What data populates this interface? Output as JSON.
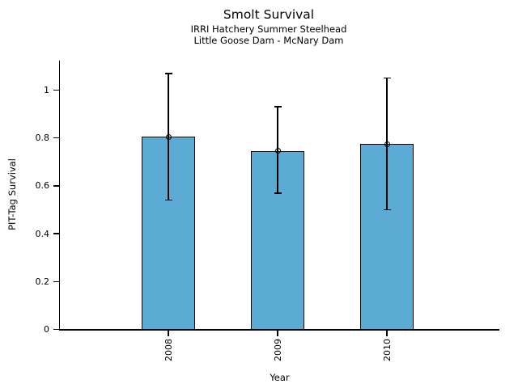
{
  "header": {
    "title": "Smolt Survival",
    "subtitle1": "IRRI Hatchery Summer Steelhead",
    "subtitle2": "Little Goose Dam - McNary Dam"
  },
  "chart_data": {
    "type": "bar",
    "title": "Smolt Survival",
    "subtitle1": "IRRI Hatchery Summer Steelhead",
    "subtitle2": "Little Goose Dam - McNary Dam",
    "xlabel": "Year",
    "ylabel": "PIT-Tag Survival",
    "categories": [
      "2008",
      "2009",
      "2010"
    ],
    "series": [
      {
        "name": "PIT-Tag Survival",
        "values": [
          0.805,
          0.745,
          0.775
        ],
        "error_low": [
          0.54,
          0.57,
          0.5
        ],
        "error_high": [
          1.07,
          0.93,
          1.05
        ]
      }
    ],
    "yticks": {
      "values": [
        0,
        0.2,
        0.4,
        0.6,
        0.8,
        1.0
      ],
      "labels": [
        "0",
        "0.2",
        "0.4",
        "0.6",
        "0.8",
        "1"
      ]
    },
    "ylim": [
      0,
      1.125
    ],
    "grid": false,
    "legend": null,
    "marker": "open-circle",
    "bar_color": "#5BABD5",
    "bar_edge_color": "#000000",
    "error_color": "#000000",
    "text_color": "#000000",
    "background_color": "#ffffff"
  }
}
